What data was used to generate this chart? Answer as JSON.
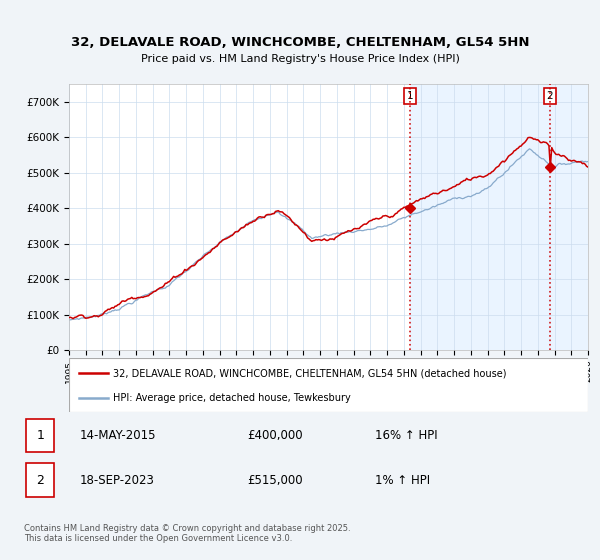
{
  "title": "32, DELAVALE ROAD, WINCHCOMBE, CHELTENHAM, GL54 5HN",
  "subtitle": "Price paid vs. HM Land Registry's House Price Index (HPI)",
  "ylabel_values": [
    "£0",
    "£100K",
    "£200K",
    "£300K",
    "£400K",
    "£500K",
    "£600K",
    "£700K"
  ],
  "ylim": [
    0,
    750000
  ],
  "xlim_start": 1995,
  "xlim_end": 2026,
  "red_color": "#cc0000",
  "blue_color": "#88aacc",
  "shade_color": "#ddeeff",
  "vline_color": "#cc0000",
  "legend_label_red": "32, DELAVALE ROAD, WINCHCOMBE, CHELTENHAM, GL54 5HN (detached house)",
  "legend_label_blue": "HPI: Average price, detached house, Tewkesbury",
  "transaction1_date": "14-MAY-2015",
  "transaction1_price": "£400,000",
  "transaction1_hpi": "16% ↑ HPI",
  "transaction1_year": 2015.37,
  "transaction1_value": 400000,
  "transaction2_date": "18-SEP-2023",
  "transaction2_price": "£515,000",
  "transaction2_hpi": "1% ↑ HPI",
  "transaction2_year": 2023.71,
  "transaction2_value": 515000,
  "footer": "Contains HM Land Registry data © Crown copyright and database right 2025.\nThis data is licensed under the Open Government Licence v3.0.",
  "background_color": "#f0f4f8",
  "plot_bg_color": "#ffffff",
  "grid_color": "#ccddee"
}
